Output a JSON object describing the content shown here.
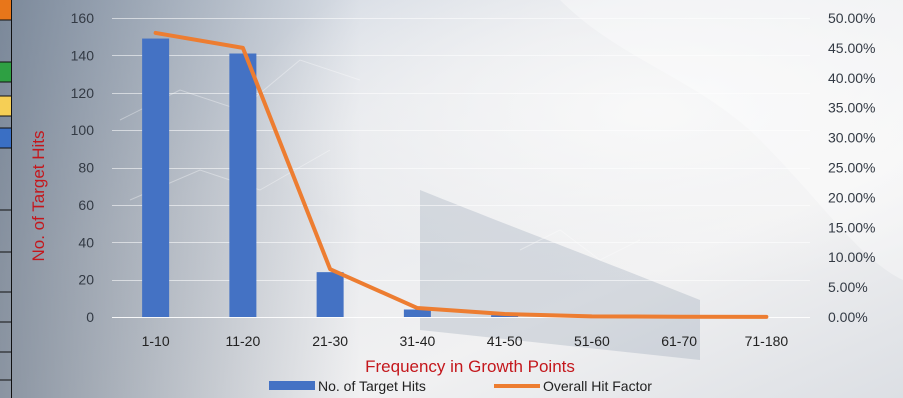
{
  "colors": {
    "bar": "#4472c4",
    "line": "#ed7d31",
    "axis_title": "#c4171c",
    "strip_orange": "#e8761a",
    "strip_green": "#2ea043",
    "strip_yellow": "#f6cf55",
    "strip_blue": "#3a6fc4"
  },
  "chart_data": {
    "type": "bar",
    "categories": [
      "1-10",
      "11-20",
      "21-30",
      "31-40",
      "41-50",
      "51-60",
      "61-70",
      "71-180"
    ],
    "series": [
      {
        "name": "No. of Target Hits",
        "type": "bar",
        "axis": "left",
        "values": [
          149,
          141,
          24,
          4,
          1,
          0,
          0,
          0
        ]
      },
      {
        "name": "Overall Hit Factor",
        "type": "line",
        "axis": "right",
        "values": [
          47.5,
          45.0,
          8.0,
          1.5,
          0.5,
          0.1,
          0.05,
          0.02
        ]
      }
    ],
    "xlabel": "Frequency in Growth Points",
    "ylabel": "No. of Target Hits",
    "ylim": [
      0,
      160
    ],
    "y_ticks": [
      "160",
      "140",
      "120",
      "100",
      "80",
      "60",
      "40",
      "20",
      "0"
    ],
    "y2lim": [
      0,
      50
    ],
    "y2_ticks": [
      "50.00%",
      "45.00%",
      "40.00%",
      "35.00%",
      "30.00%",
      "25.00%",
      "20.00%",
      "15.00%",
      "10.00%",
      "5.00%",
      "0.00%"
    ],
    "grid": true,
    "legend": "bottom"
  }
}
